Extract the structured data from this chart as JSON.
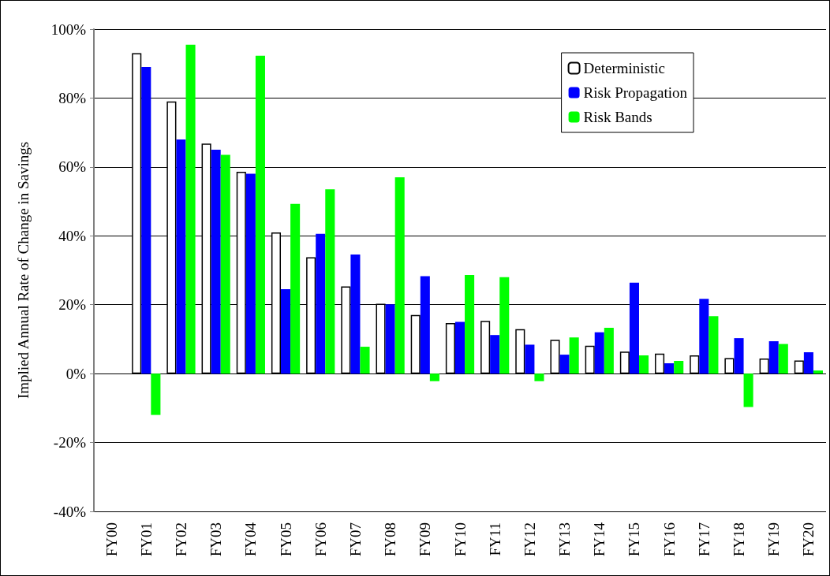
{
  "chart_data": {
    "type": "bar",
    "ylabel": "Implied Annual Rate of Change in Savings",
    "categories": [
      "FY00",
      "FY01",
      "FY02",
      "FY03",
      "FY04",
      "FY05",
      "FY06",
      "FY07",
      "FY08",
      "FY09",
      "FY10",
      "FY11",
      "FY12",
      "FY13",
      "FY14",
      "FY15",
      "FY16",
      "FY17",
      "FY18",
      "FY19",
      "FY20"
    ],
    "series": [
      {
        "name": "Deterministic",
        "color": "#ffffff",
        "values": [
          null,
          93,
          79,
          66.8,
          58.6,
          41,
          33.8,
          25.3,
          20.3,
          17,
          14.7,
          15.3,
          12.9,
          9.8,
          8.1,
          6.4,
          5.8,
          5.3,
          4.5,
          4.4,
          3.8
        ]
      },
      {
        "name": "Risk Propagation",
        "color": "#0000ff",
        "values": [
          null,
          89,
          68,
          65,
          58,
          24.5,
          40.6,
          34.6,
          20.1,
          28.3,
          15,
          11.2,
          8.4,
          5.5,
          12,
          26.4,
          3,
          21.7,
          10.3,
          9.4,
          6.2
        ]
      },
      {
        "name": "Risk Bands",
        "color": "#00ff00",
        "values": [
          null,
          -12,
          95.5,
          63.5,
          92.3,
          49.3,
          53.5,
          7.8,
          57,
          -2.2,
          28.6,
          28,
          -2.2,
          10.5,
          13.3,
          5.3,
          3.7,
          16.7,
          -9.7,
          8.6,
          0.9
        ]
      }
    ],
    "ylim": [
      -40,
      100
    ],
    "yticks": [
      {
        "value": -40,
        "label": "-40%"
      },
      {
        "value": -20,
        "label": "-20%"
      },
      {
        "value": 0,
        "label": "0%"
      },
      {
        "value": 20,
        "label": "20%"
      },
      {
        "value": 40,
        "label": "40%"
      },
      {
        "value": 60,
        "label": "60%"
      },
      {
        "value": 80,
        "label": "80%"
      },
      {
        "value": 100,
        "label": "100%"
      }
    ],
    "grid": "y",
    "legend": "top right"
  }
}
